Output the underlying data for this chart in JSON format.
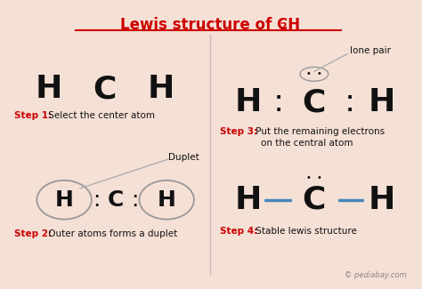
{
  "bg_color": "#f5e0d6",
  "title_color": "#cc0000",
  "black": "#111111",
  "red": "#cc0000",
  "blue": "#4488bb",
  "gray": "#aaaaaa",
  "darkgray": "#888888",
  "step1_bold": "Step 1:",
  "step1_rest": " Select the center atom",
  "step2_bold": "Step 2:",
  "step2_rest": " Outer atoms forms a duplet",
  "step3_bold": "Step 3:",
  "step3_line1": " Put the remaining electrons",
  "step3_line2": "on the central atom",
  "step4_bold": "Step 4:",
  "step4_rest": " Stable lewis structure",
  "watermark": "© pediabay.com",
  "duplet_label": "Duplet",
  "lone_pair_label": "lone pair"
}
